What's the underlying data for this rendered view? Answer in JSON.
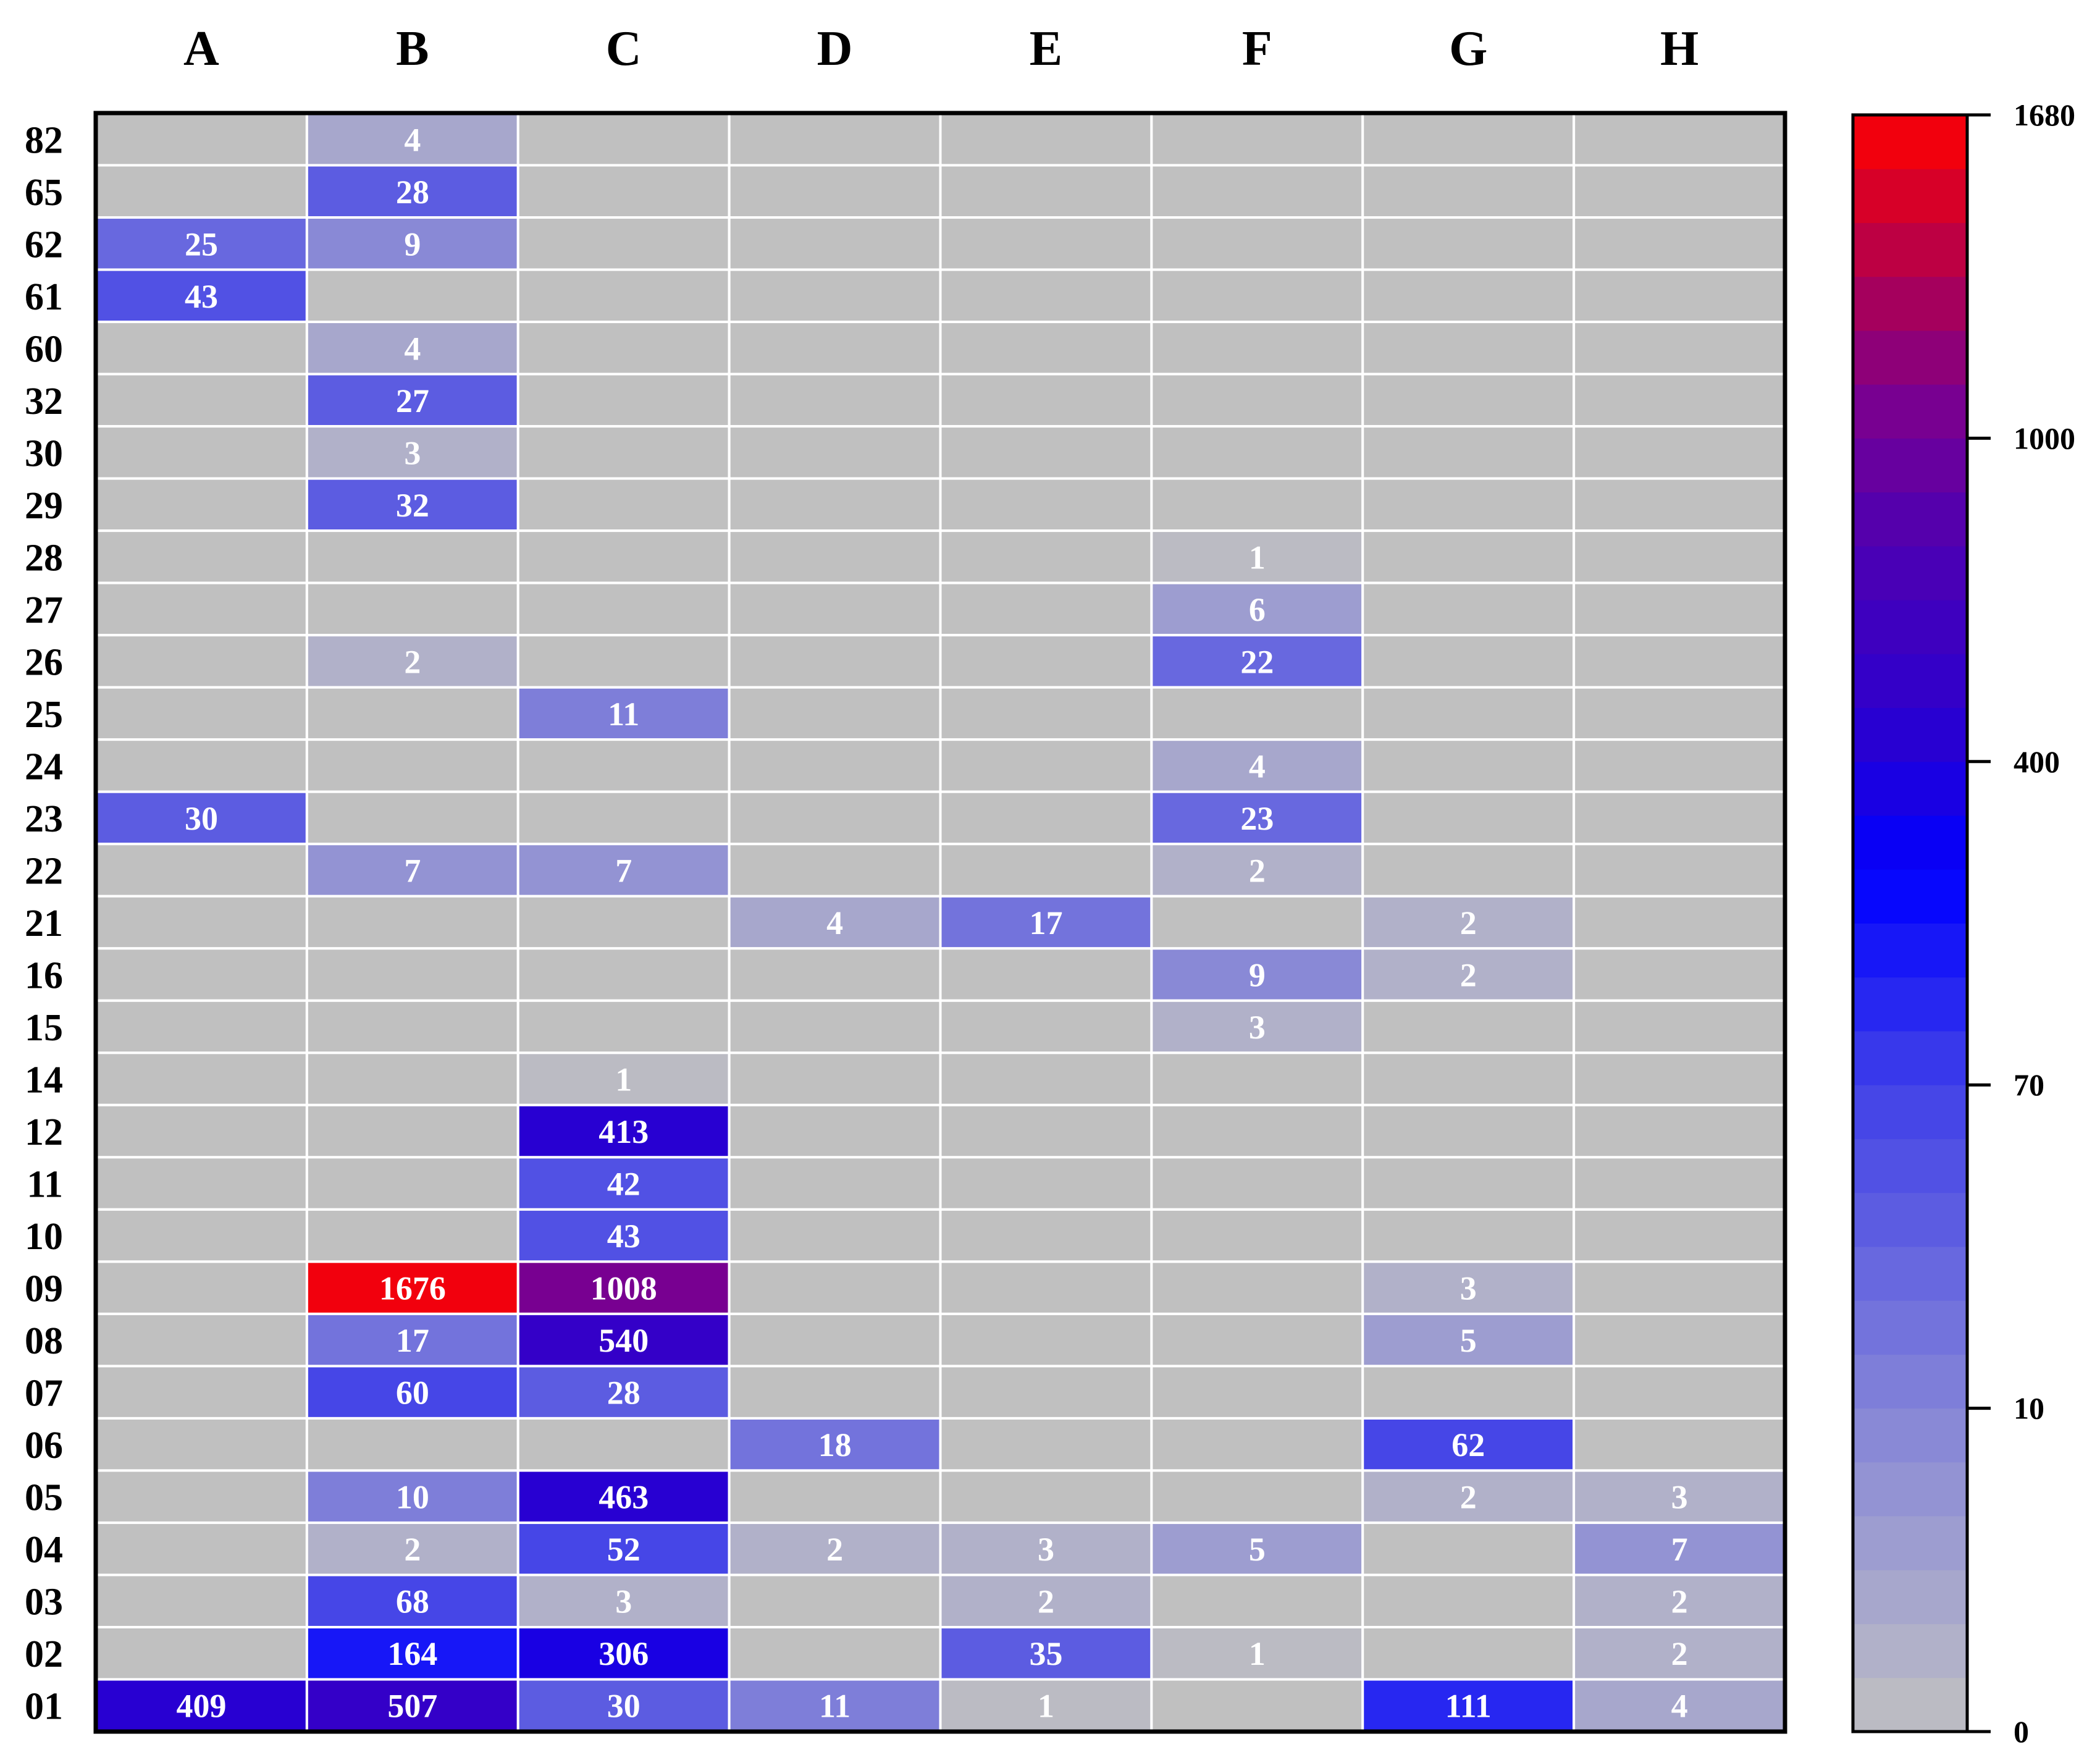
{
  "chart_data": {
    "type": "heatmap",
    "columns": [
      "A",
      "B",
      "C",
      "D",
      "E",
      "F",
      "G",
      "H"
    ],
    "rows": [
      "82",
      "65",
      "62",
      "61",
      "60",
      "32",
      "30",
      "29",
      "28",
      "27",
      "26",
      "25",
      "24",
      "23",
      "22",
      "21",
      "16",
      "15",
      "14",
      "12",
      "11",
      "10",
      "09",
      "08",
      "07",
      "06",
      "05",
      "04",
      "03",
      "02",
      "01"
    ],
    "values": [
      [
        null,
        4,
        null,
        null,
        null,
        null,
        null,
        null
      ],
      [
        null,
        28,
        null,
        null,
        null,
        null,
        null,
        null
      ],
      [
        25,
        9,
        null,
        null,
        null,
        null,
        null,
        null
      ],
      [
        43,
        null,
        null,
        null,
        null,
        null,
        null,
        null
      ],
      [
        null,
        4,
        null,
        null,
        null,
        null,
        null,
        null
      ],
      [
        null,
        27,
        null,
        null,
        null,
        null,
        null,
        null
      ],
      [
        null,
        3,
        null,
        null,
        null,
        null,
        null,
        null
      ],
      [
        null,
        32,
        null,
        null,
        null,
        null,
        null,
        null
      ],
      [
        null,
        null,
        null,
        null,
        null,
        1,
        null,
        null
      ],
      [
        null,
        null,
        null,
        null,
        null,
        6,
        null,
        null
      ],
      [
        null,
        2,
        null,
        null,
        null,
        22,
        null,
        null
      ],
      [
        null,
        null,
        11,
        null,
        null,
        null,
        null,
        null
      ],
      [
        null,
        null,
        null,
        null,
        null,
        4,
        null,
        null
      ],
      [
        30,
        null,
        null,
        null,
        null,
        23,
        null,
        null
      ],
      [
        null,
        7,
        7,
        null,
        null,
        2,
        null,
        null
      ],
      [
        null,
        null,
        null,
        4,
        17,
        null,
        2,
        null
      ],
      [
        null,
        null,
        null,
        null,
        null,
        9,
        2,
        null
      ],
      [
        null,
        null,
        null,
        null,
        null,
        3,
        null,
        null
      ],
      [
        null,
        null,
        1,
        null,
        null,
        null,
        null,
        null
      ],
      [
        null,
        null,
        413,
        null,
        null,
        null,
        null,
        null
      ],
      [
        null,
        null,
        42,
        null,
        null,
        null,
        null,
        null
      ],
      [
        null,
        null,
        43,
        null,
        null,
        null,
        null,
        null
      ],
      [
        null,
        1676,
        1008,
        null,
        null,
        null,
        3,
        null
      ],
      [
        null,
        17,
        540,
        null,
        null,
        null,
        5,
        null
      ],
      [
        null,
        60,
        28,
        null,
        null,
        null,
        null,
        null
      ],
      [
        null,
        null,
        null,
        18,
        null,
        null,
        62,
        null
      ],
      [
        null,
        10,
        463,
        null,
        null,
        null,
        2,
        3
      ],
      [
        null,
        2,
        52,
        2,
        3,
        5,
        null,
        7
      ],
      [
        null,
        68,
        3,
        null,
        2,
        null,
        null,
        2
      ],
      [
        null,
        164,
        306,
        null,
        35,
        1,
        null,
        2
      ],
      [
        409,
        507,
        30,
        11,
        1,
        null,
        111,
        4
      ]
    ],
    "colorbar": {
      "ticks": [
        0,
        10,
        70,
        400,
        1000,
        1680
      ],
      "tick_labels": [
        "0",
        "10",
        "70",
        "400",
        "1000",
        "1680"
      ],
      "steps": 30
    },
    "colors": {
      "empty": "#c0c0c0",
      "low": "#b4b4c8",
      "blue": "#0000ff",
      "purple": "#7a0090",
      "red": "#ff0000",
      "grid_line": "#ffffff",
      "frame": "#000000"
    }
  }
}
